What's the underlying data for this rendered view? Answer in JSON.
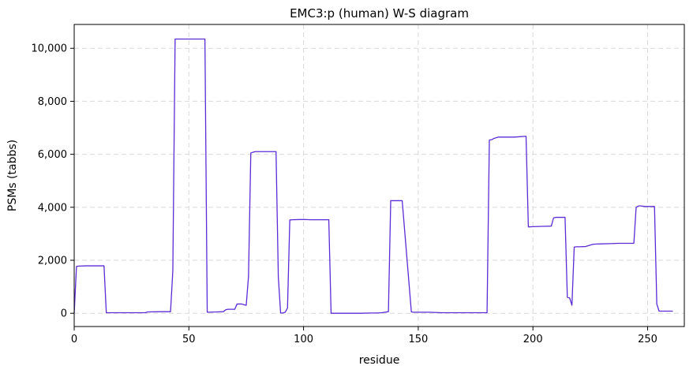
{
  "chart_data": {
    "type": "line",
    "title": "EMC3:p (human) W-S diagram",
    "xlabel": "residue",
    "ylabel": "PSMs (tabbs)",
    "xlim": [
      0,
      266
    ],
    "ylim": [
      -500,
      10900
    ],
    "xticks": [
      0,
      50,
      100,
      150,
      200,
      250
    ],
    "yticks": [
      0,
      2000,
      4000,
      6000,
      8000,
      10000
    ],
    "xtick_labels": [
      "0",
      "50",
      "100",
      "150",
      "200",
      "250"
    ],
    "ytick_labels": [
      "0",
      "2,000",
      "4,000",
      "6,000",
      "8,000",
      "10,000"
    ],
    "grid": true,
    "line_color": "#5b2bd6",
    "series": [
      {
        "x": [
          0,
          1,
          2,
          5,
          8,
          13,
          14,
          20,
          25,
          31,
          32,
          38,
          42,
          43,
          44,
          50,
          57,
          58,
          62,
          65,
          66,
          67,
          70,
          71,
          73,
          75,
          76,
          77,
          78,
          79,
          81,
          83,
          85,
          88,
          89,
          90,
          91,
          92,
          93,
          94,
          95,
          100,
          103,
          108,
          111,
          112,
          113,
          118,
          125,
          129,
          132,
          134,
          137,
          138,
          139,
          140,
          143,
          147,
          148,
          150,
          155,
          160,
          165,
          170,
          175,
          180,
          181,
          182,
          183,
          185,
          188,
          192,
          197,
          198,
          200,
          204,
          208,
          209,
          210,
          212,
          214,
          215,
          216,
          217,
          218,
          219,
          220,
          223,
          226,
          227,
          230,
          234,
          237,
          241,
          244,
          245,
          246,
          247,
          249,
          253,
          254,
          255,
          258,
          261
        ],
        "y": [
          0,
          1770,
          1780,
          1790,
          1790,
          1790,
          20,
          20,
          20,
          20,
          50,
          60,
          60,
          1600,
          10350,
          10350,
          10350,
          40,
          50,
          60,
          130,
          150,
          150,
          350,
          350,
          300,
          1400,
          6050,
          6080,
          6100,
          6100,
          6100,
          6100,
          6100,
          1350,
          10,
          10,
          40,
          200,
          3520,
          3530,
          3540,
          3530,
          3530,
          3530,
          0,
          0,
          0,
          0,
          10,
          10,
          20,
          60,
          4250,
          4250,
          4250,
          4250,
          50,
          40,
          40,
          40,
          20,
          20,
          20,
          20,
          20,
          6540,
          6550,
          6600,
          6650,
          6650,
          6650,
          6680,
          3260,
          3270,
          3280,
          3290,
          3600,
          3620,
          3620,
          3620,
          600,
          580,
          300,
          2500,
          2510,
          2510,
          2520,
          2600,
          2610,
          2620,
          2630,
          2640,
          2640,
          2640,
          4000,
          4050,
          4050,
          4030,
          4030,
          350,
          80,
          80,
          80
        ]
      }
    ]
  }
}
